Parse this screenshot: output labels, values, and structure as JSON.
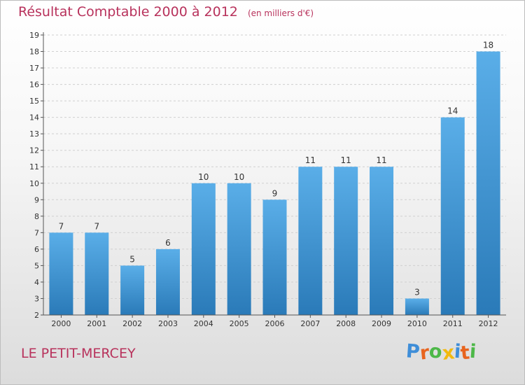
{
  "chart_data": {
    "type": "bar",
    "title": "Résultat Comptable 2000 à 2012",
    "subtitle": "(en milliers d'€)",
    "categories": [
      "2000",
      "2001",
      "2002",
      "2003",
      "2004",
      "2005",
      "2006",
      "2007",
      "2008",
      "2009",
      "2010",
      "2011",
      "2012"
    ],
    "values": [
      7,
      7,
      5,
      6,
      10,
      10,
      9,
      11,
      11,
      11,
      3,
      14,
      18
    ],
    "ylim": [
      2,
      19
    ],
    "yticks": [
      2,
      3,
      4,
      5,
      6,
      7,
      8,
      9,
      10,
      11,
      12,
      13,
      14,
      15,
      16,
      17,
      18,
      19
    ],
    "xlabel": "",
    "ylabel": "",
    "grid": true,
    "colors": {
      "bar_light": "#5aaee8",
      "bar_dark": "#2a7ab8",
      "grid": "#d0d0d0",
      "title": "#b8325c"
    }
  },
  "commune": "LE PETIT-MERCEY",
  "logo": {
    "letters": [
      {
        "ch": "P",
        "color": "#3f8ed8"
      },
      {
        "ch": "r",
        "color": "#e8641e"
      },
      {
        "ch": "o",
        "color": "#4db848"
      },
      {
        "ch": "x",
        "color": "#f2b90f"
      },
      {
        "ch": "i",
        "color": "#3f8ed8"
      },
      {
        "ch": "t",
        "color": "#e8641e"
      },
      {
        "ch": "i",
        "color": "#4db848"
      }
    ]
  }
}
